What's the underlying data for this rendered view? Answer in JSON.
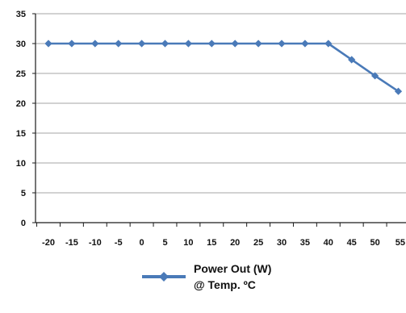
{
  "chart_data": {
    "type": "line",
    "x": [
      -20,
      -15,
      -10,
      -5,
      0,
      5,
      10,
      15,
      20,
      25,
      30,
      35,
      40,
      45,
      50,
      55
    ],
    "series": [
      {
        "name": "Power Out (W) @ Temp. ºC",
        "legend_lines": [
          "Power Out (W)",
          "@ Temp. ºC"
        ],
        "values": [
          30,
          30,
          30,
          30,
          30,
          30,
          30,
          30,
          30,
          30,
          30,
          30,
          30,
          27.3,
          24.6,
          22
        ],
        "color": "#4a7ab8"
      }
    ],
    "x_tick_labels": [
      "-20",
      "-15",
      "-10",
      "-5",
      "0",
      "5",
      "10",
      "15",
      "20",
      "25",
      "30",
      "35",
      "40",
      "45",
      "50",
      "55"
    ],
    "y_tick_labels": [
      "0",
      "5",
      "10",
      "15",
      "20",
      "25",
      "30",
      "35"
    ],
    "y_ticks": [
      0,
      5,
      10,
      15,
      20,
      25,
      30,
      35
    ],
    "ylim": [
      0,
      35
    ],
    "grid": true,
    "legend_position": "bottom",
    "title": "",
    "xlabel": "",
    "ylabel": ""
  }
}
